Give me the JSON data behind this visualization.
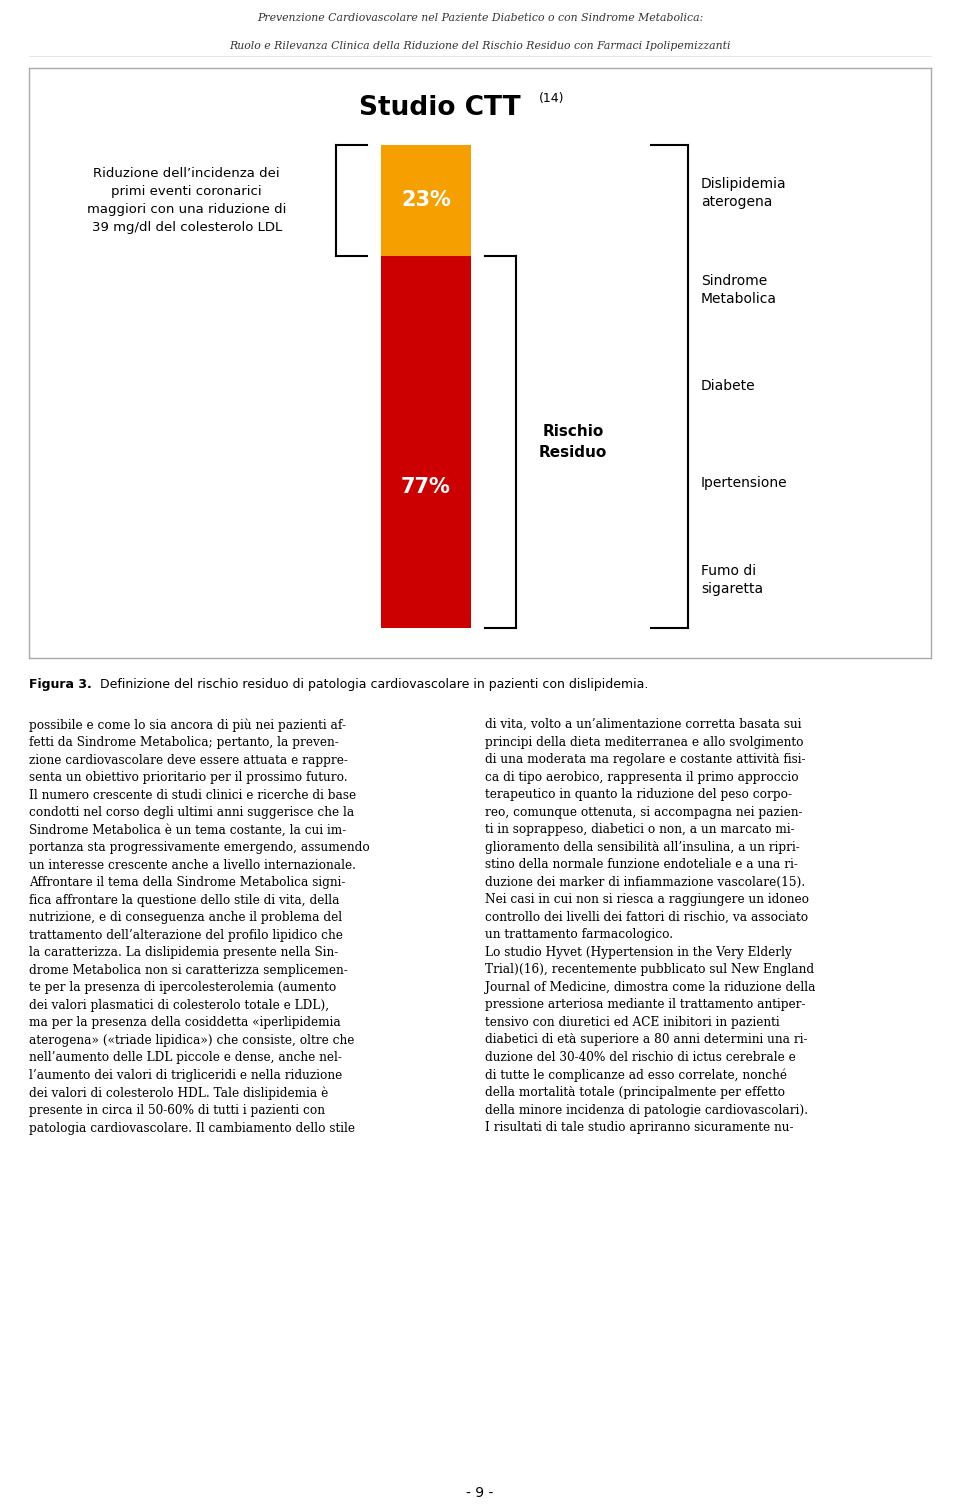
{
  "header_line1": "Prevenzione Cardiovascolare nel Paziente Diabetico o con Sindrome Metabolica:",
  "header_line2": "Ruolo e Rilevanza Clinica della Riduzione del Rischio Residuo con Farmaci Ipolipemizzanti",
  "figure_title": "Studio CTT",
  "figure_title_superscript": "(14)",
  "bar_orange_color": "#F5A000",
  "bar_red_color": "#CC0000",
  "bar_orange_pct": 23,
  "bar_red_pct": 77,
  "left_text": "Riduzione dell’incidenza dei\nprimi eventi coronarici\nmaggiori con una riduzione di\n39 mg/dl del colesterolo LDL",
  "rischio_label": "Rischio\nResiduo",
  "right_items": [
    "Dislipidemia\naterogena",
    "Sindrome\nMetabolica",
    "Diabete",
    "Ipertensione",
    "Fumo di\nsigaretta"
  ],
  "figure_caption_bold": "Figura 3.",
  "figure_caption_rest": " Definizione del rischio residuo di patologia cardiovascolare in pazienti con dislipidemia.",
  "body_left": "possibile e come lo sia ancora di più nei pazienti af-\nfetti da Sindrome Metabolica; pertanto, la preven-\nzione cardiovascolare deve essere attuata e rappre-\nsenta un obiettivo prioritario per il prossimo futuro.\nIl numero crescente di studi clinici e ricerche di base\ncondotti nel corso degli ultimi anni suggerisce che la\nSindrome Metabolica è un tema costante, la cui im-\nportanza sta progressivamente emergendo, assumendo\nun interesse crescente anche a livello internazionale.\nAffrontare il tema della Sindrome Metabolica signi-\nfica affrontare la questione dello stile di vita, della\nnutrizione, e di conseguenza anche il problema del\ntrattamento dell’alterazione del profilo lipidico che\nla caratterizza. La dislipidemia presente nella Sin-\ndrome Metabolica non si caratterizza semplicemen-\nte per la presenza di ipercolesterolemia (aumento\ndei valori plasmatici di colesterolo totale e LDL),\nma per la presenza della cosiddetta «iperlipidemia\naterogena» («triade lipidica») che consiste, oltre che\nnell’aumento delle LDL piccole e dense, anche nel-\nl’aumento dei valori di trigliceridi e nella riduzione\ndei valori di colesterolo HDL. Tale dislipidemia è\npresente in circa il 50-60% di tutti i pazienti con\npatologia cardiovascolare. Il cambiamento dello stile",
  "body_right": "di vita, volto a un’alimentazione corretta basata sui\nprincipi della dieta mediterranea e allo svolgimento\ndi una moderata ma regolare e costante attività fisi-\nca di tipo aerobico, rappresenta il primo approccio\nterapeutico in quanto la riduzione del peso corpo-\nreo, comunque ottenuta, si accompagna nei pazien-\nti in soprappeso, diabetici o non, a un marcato mi-\nglioramento della sensibilità all’insulina, a un ripri-\nstino della normale funzione endoteliale e a una ri-\nduzione dei marker di infiammazione vascolare(15).\nNei casi in cui non si riesca a raggiungere un idoneo\ncontrollo dei livelli dei fattori di rischio, va associato\nun trattamento farmacologico.\nLo studio Hyvet (Hypertension in the Very Elderly\nTrial)(16), recentemente pubblicato sul New England\nJournal of Medicine, dimostra come la riduzione della\npressione arteriosa mediante il trattamento antiper-\ntensivo con diuretici ed ACE inibitori in pazienti\ndiabetici di età superiore a 80 anni determini una ri-\nduzione del 30-40% del rischio di ictus cerebrale e\ndi tutte le complicanze ad esso correlate, nonché\ndella mortalità totale (principalmente per effetto\ndella minore incidenza di patologie cardiovascolari).\nI risultati di tale studio apriranno sicuramente nu-",
  "page_number": "- 9 -",
  "bg_color": "#ffffff"
}
